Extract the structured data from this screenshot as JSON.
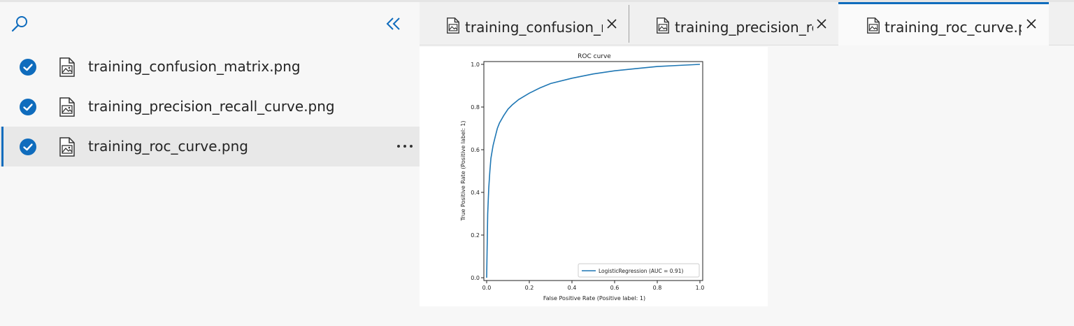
{
  "sidebar": {
    "files": [
      {
        "name": "training_confusion_matrix.png",
        "checked": true,
        "selected": false
      },
      {
        "name": "training_precision_recall_curve.png",
        "checked": true,
        "selected": false
      },
      {
        "name": "training_roc_curve.png",
        "checked": true,
        "selected": true
      }
    ]
  },
  "tabs": [
    {
      "label": "training_confusion_matrix.png",
      "active": false
    },
    {
      "label": "training_precision_recall_curve.png",
      "active": false
    },
    {
      "label": "training_roc_curve.png",
      "active": true
    }
  ],
  "colors": {
    "accent": "#0f6cbd",
    "curve": "#1f77b4"
  },
  "chart_data": {
    "type": "line",
    "title": "ROC curve",
    "xlabel": "False Positive Rate (Positive label: 1)",
    "ylabel": "True Positive Rate (Positive label: 1)",
    "xlim": [
      0.0,
      1.0
    ],
    "ylim": [
      0.0,
      1.0
    ],
    "xticks": [
      "0.0",
      "0.2",
      "0.4",
      "0.6",
      "0.8",
      "1.0"
    ],
    "yticks": [
      "0.0",
      "0.2",
      "0.4",
      "0.6",
      "0.8",
      "1.0"
    ],
    "grid": false,
    "legend": {
      "position": "lower-right",
      "label": "LogisticRegression (AUC = 0.91)"
    },
    "series": [
      {
        "name": "LogisticRegression (AUC = 0.91)",
        "x": [
          0.0,
          0.002,
          0.005,
          0.01,
          0.015,
          0.02,
          0.03,
          0.04,
          0.05,
          0.06,
          0.08,
          0.1,
          0.12,
          0.15,
          0.2,
          0.25,
          0.3,
          0.4,
          0.5,
          0.6,
          0.7,
          0.8,
          0.9,
          1.0
        ],
        "y": [
          0.0,
          0.12,
          0.3,
          0.42,
          0.5,
          0.56,
          0.62,
          0.66,
          0.7,
          0.725,
          0.76,
          0.79,
          0.81,
          0.835,
          0.865,
          0.89,
          0.91,
          0.935,
          0.955,
          0.97,
          0.98,
          0.99,
          0.995,
          1.0
        ]
      }
    ]
  }
}
